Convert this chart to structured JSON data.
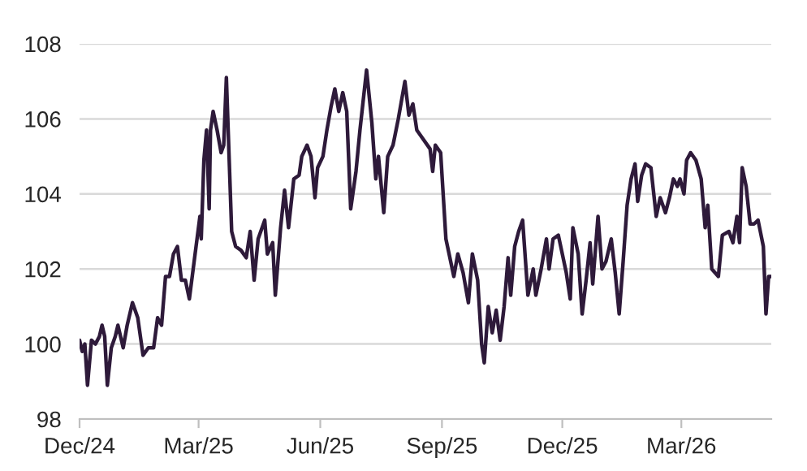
{
  "chart_data": {
    "type": "line",
    "x": [
      "2024-12-01",
      "2024-12-03",
      "2024-12-05",
      "2024-12-07",
      "2024-12-10",
      "2024-12-13",
      "2024-12-16",
      "2024-12-18",
      "2024-12-20",
      "2024-12-22",
      "2024-12-25",
      "2024-12-28",
      "2024-12-30",
      "2025-01-03",
      "2025-01-06",
      "2025-01-10",
      "2025-01-14",
      "2025-01-18",
      "2025-01-22",
      "2025-01-26",
      "2025-01-29",
      "2025-02-01",
      "2025-02-04",
      "2025-02-07",
      "2025-02-10",
      "2025-02-13",
      "2025-02-16",
      "2025-02-19",
      "2025-02-22",
      "2025-02-26",
      "2025-03-02",
      "2025-03-03",
      "2025-03-05",
      "2025-03-07",
      "2025-03-09",
      "2025-03-10",
      "2025-03-12",
      "2025-03-15",
      "2025-03-18",
      "2025-03-20",
      "2025-03-22",
      "2025-03-26",
      "2025-03-29",
      "2025-04-02",
      "2025-04-06",
      "2025-04-09",
      "2025-04-12",
      "2025-04-15",
      "2025-04-20",
      "2025-04-22",
      "2025-04-26",
      "2025-04-28",
      "2025-05-02",
      "2025-05-05",
      "2025-05-08",
      "2025-05-12",
      "2025-05-16",
      "2025-05-18",
      "2025-05-22",
      "2025-05-25",
      "2025-05-28",
      "2025-05-30",
      "2025-06-03",
      "2025-06-06",
      "2025-06-09",
      "2025-06-12",
      "2025-06-15",
      "2025-06-18",
      "2025-06-21",
      "2025-06-24",
      "2025-06-28",
      "2025-07-01",
      "2025-07-06",
      "2025-07-10",
      "2025-07-13",
      "2025-07-15",
      "2025-07-19",
      "2025-07-22",
      "2025-07-26",
      "2025-07-30",
      "2025-08-04",
      "2025-08-07",
      "2025-08-10",
      "2025-08-13",
      "2025-08-17",
      "2025-08-23",
      "2025-08-25",
      "2025-08-27",
      "2025-08-31",
      "2025-09-04",
      "2025-09-10",
      "2025-09-13",
      "2025-09-17",
      "2025-09-21",
      "2025-09-24",
      "2025-09-28",
      "2025-10-01",
      "2025-10-03",
      "2025-10-06",
      "2025-10-09",
      "2025-10-12",
      "2025-10-15",
      "2025-10-18",
      "2025-10-21",
      "2025-10-23",
      "2025-10-26",
      "2025-10-29",
      "2025-11-01",
      "2025-11-05",
      "2025-11-09",
      "2025-11-11",
      "2025-11-15",
      "2025-11-19",
      "2025-11-21",
      "2025-11-24",
      "2025-11-28",
      "2025-12-04",
      "2025-12-07",
      "2025-12-09",
      "2025-12-13",
      "2025-12-16",
      "2025-12-19",
      "2025-12-22",
      "2025-12-24",
      "2025-12-28",
      "2025-12-31",
      "2026-01-03",
      "2026-01-07",
      "2026-01-10",
      "2026-01-13",
      "2026-01-16",
      "2026-01-19",
      "2026-01-22",
      "2026-01-25",
      "2026-01-27",
      "2026-01-30",
      "2026-02-02",
      "2026-02-06",
      "2026-02-10",
      "2026-02-13",
      "2026-02-17",
      "2026-02-20",
      "2026-02-23",
      "2026-02-26",
      "2026-02-28",
      "2026-03-03",
      "2026-03-05",
      "2026-03-08",
      "2026-03-12",
      "2026-03-16",
      "2026-03-19",
      "2026-03-21",
      "2026-03-24",
      "2026-03-29",
      "2026-04-01",
      "2026-04-06",
      "2026-04-09",
      "2026-04-12",
      "2026-04-14",
      "2026-04-16",
      "2026-04-19",
      "2026-04-22",
      "2026-04-25",
      "2026-04-28",
      "2026-05-02",
      "2026-05-04",
      "2026-05-06",
      "2026-05-08"
    ],
    "series": [
      {
        "color": "#2e1a3a",
        "values": [
          100.1,
          99.8,
          100.0,
          98.9,
          100.1,
          100.0,
          100.2,
          100.5,
          100.2,
          98.9,
          99.9,
          100.2,
          100.5,
          99.9,
          100.5,
          101.1,
          100.7,
          99.7,
          99.9,
          99.9,
          100.7,
          100.5,
          101.8,
          101.8,
          102.4,
          102.6,
          101.7,
          101.7,
          101.2,
          102.3,
          103.4,
          102.8,
          104.9,
          105.7,
          103.6,
          105.7,
          106.2,
          105.7,
          105.1,
          105.3,
          107.1,
          103.0,
          102.6,
          102.5,
          102.3,
          103.0,
          101.7,
          102.8,
          103.3,
          102.4,
          102.7,
          101.3,
          103.1,
          104.1,
          103.1,
          104.4,
          104.5,
          105.0,
          105.3,
          105.0,
          103.9,
          104.7,
          105.0,
          105.7,
          106.3,
          106.8,
          106.2,
          106.7,
          106.2,
          103.6,
          104.6,
          105.7,
          107.3,
          105.9,
          104.4,
          105.0,
          103.5,
          105.0,
          105.3,
          106.0,
          107.0,
          106.1,
          106.4,
          105.7,
          105.5,
          105.2,
          104.6,
          105.3,
          105.1,
          102.8,
          101.8,
          102.4,
          101.9,
          101.1,
          102.4,
          101.7,
          100.0,
          99.5,
          101.0,
          100.3,
          100.9,
          100.1,
          101.0,
          102.3,
          101.3,
          102.6,
          103.0,
          103.3,
          101.3,
          102.0,
          101.3,
          102.0,
          102.8,
          102.0,
          102.8,
          102.9,
          101.9,
          101.2,
          103.1,
          102.4,
          100.8,
          101.7,
          102.7,
          101.6,
          103.4,
          102.0,
          102.2,
          102.8,
          101.9,
          100.8,
          102.2,
          103.7,
          104.4,
          104.8,
          103.8,
          104.5,
          104.8,
          104.7,
          103.4,
          103.9,
          103.5,
          103.9,
          104.4,
          104.2,
          104.4,
          104.0,
          104.9,
          105.1,
          104.9,
          104.4,
          103.1,
          103.7,
          102.0,
          101.8,
          102.9,
          103.0,
          102.7,
          103.4,
          102.7,
          104.7,
          104.2,
          103.2,
          103.2,
          103.3,
          102.6,
          100.8,
          101.8,
          101.8
        ]
      }
    ],
    "xlim": [
      "2024-12-01",
      "2026-05-08"
    ],
    "xticks": [
      {
        "value": "2024-12-01",
        "label": "Dec/24"
      },
      {
        "value": "2025-03-01",
        "label": "Mar/25"
      },
      {
        "value": "2025-06-01",
        "label": "Jun/25"
      },
      {
        "value": "2025-09-01",
        "label": "Sep/25"
      },
      {
        "value": "2025-12-01",
        "label": "Dec/25"
      },
      {
        "value": "2026-03-01",
        "label": "Mar/26"
      }
    ],
    "ylim": [
      98,
      108
    ],
    "yticks": [
      98,
      100,
      102,
      104,
      106,
      108
    ],
    "grid": "y"
  }
}
